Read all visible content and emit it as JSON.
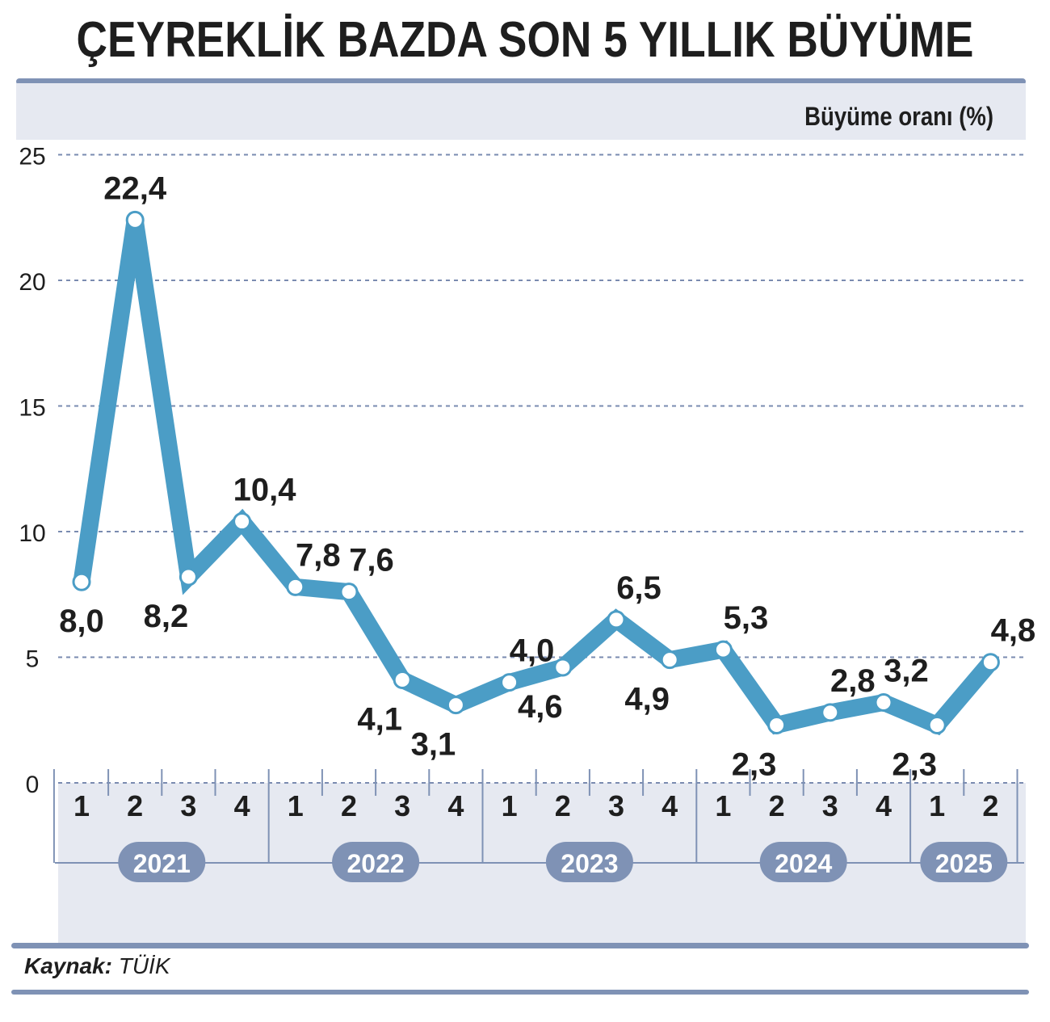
{
  "title": "ÇEYREKLİK BAZDA SON 5 YILLIK BÜYÜME",
  "source": {
    "label": "Kaynak:",
    "value": "TÜİK"
  },
  "colors": {
    "line": "#4b9dc6",
    "panel": "#e6e9f1",
    "frame": "#7f92b5",
    "badge": "#7f92b5",
    "grid": "#7a8bb0"
  },
  "chart_data": {
    "type": "line",
    "title": "ÇEYREKLİK BAZDA SON 5 YILLIK BÜYÜME",
    "ylabel": "Büyüme oranı (%)",
    "xlabel": "",
    "ylim": [
      0,
      25
    ],
    "yticks": [
      "0",
      "5",
      "10",
      "15",
      "20",
      "25"
    ],
    "grid": true,
    "categories": [
      "1",
      "2",
      "3",
      "4",
      "1",
      "2",
      "3",
      "4",
      "1",
      "2",
      "3",
      "4",
      "1",
      "2",
      "3",
      "4",
      "1",
      "2"
    ],
    "years": [
      "2021",
      "2022",
      "2023",
      "2024",
      "2025"
    ],
    "values": [
      8.0,
      22.4,
      8.2,
      10.4,
      7.8,
      7.6,
      4.1,
      3.1,
      4.0,
      4.6,
      6.5,
      4.9,
      5.3,
      2.3,
      2.8,
      3.2,
      2.3,
      4.8
    ],
    "labels": [
      "8,0",
      "22,4",
      "8,2",
      "10,4",
      "7,8",
      "7,6",
      "4,1",
      "3,1",
      "4,0",
      "4,6",
      "6,5",
      "4,9",
      "5,3",
      "2,3",
      "2,8",
      "3,2",
      "2,3",
      "4,8"
    ]
  }
}
